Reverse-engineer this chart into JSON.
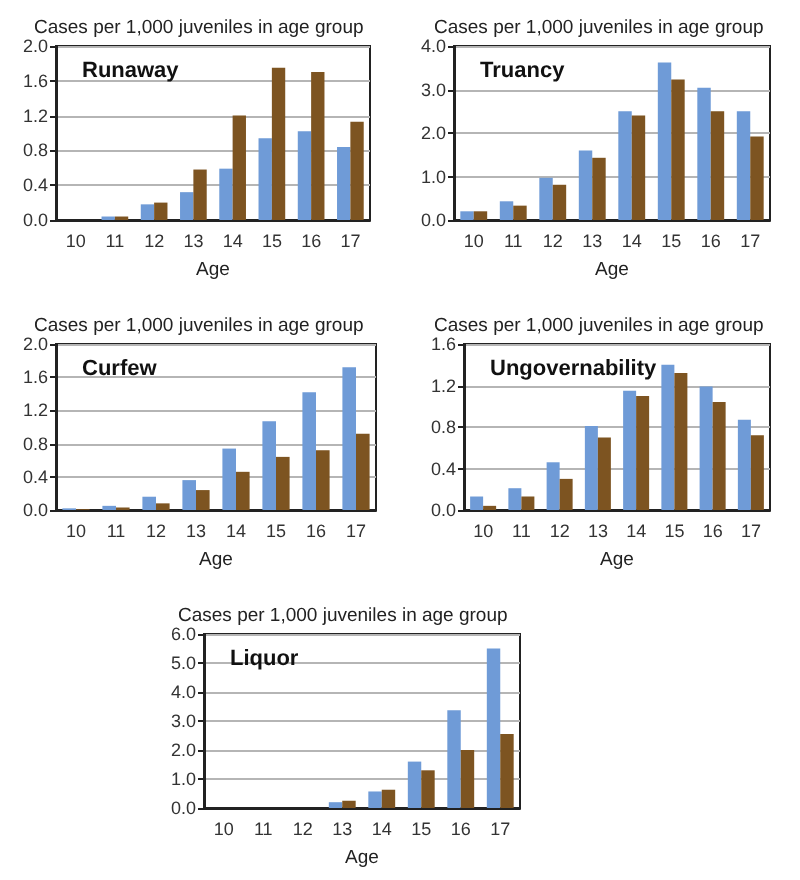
{
  "chart_data": [
    {
      "type": "bar",
      "title": "Runaway",
      "ylabel": "Cases per 1,000 juveniles in age group",
      "xlabel": "Age",
      "categories": [
        "10",
        "11",
        "12",
        "13",
        "14",
        "15",
        "16",
        "17"
      ],
      "series": [
        {
          "color": "#6f9bd7",
          "values": [
            0,
            0.04,
            0.18,
            0.32,
            0.59,
            0.94,
            1.02,
            0.84
          ]
        },
        {
          "color": "#7d5421",
          "values": [
            0,
            0.04,
            0.2,
            0.58,
            1.2,
            1.75,
            1.7,
            1.13
          ]
        }
      ],
      "ylim": [
        0,
        2
      ],
      "yticks": [
        {
          "value": 0,
          "label": "0.0"
        },
        0.4,
        0.8,
        1.2,
        1.6,
        {
          "value": 2,
          "label": "2.0"
        }
      ],
      "grid": "y"
    },
    {
      "type": "bar",
      "title": "Truancy",
      "ylabel": "Cases per 1,000 juveniles in age group",
      "xlabel": "Age",
      "categories": [
        "10",
        "11",
        "12",
        "13",
        "14",
        "15",
        "16",
        "17"
      ],
      "series": [
        {
          "color": "#6f9bd7",
          "values": [
            0.2,
            0.43,
            0.97,
            1.6,
            2.5,
            3.62,
            3.04,
            2.5
          ]
        },
        {
          "color": "#7d5421",
          "values": [
            0.2,
            0.33,
            0.81,
            1.43,
            2.4,
            3.23,
            2.5,
            1.92
          ]
        }
      ],
      "ylim": [
        0,
        4
      ],
      "yticks": [
        {
          "value": 0,
          "label": "0.0"
        },
        {
          "value": 1,
          "label": "1.0"
        },
        {
          "value": 2,
          "label": "2.0"
        },
        {
          "value": 3,
          "label": "3.0"
        },
        {
          "value": 4,
          "label": "4.0"
        }
      ],
      "grid": "y"
    },
    {
      "type": "bar",
      "title": "Curfew",
      "ylabel": "Cases per 1,000 juveniles in age group",
      "xlabel": "Age",
      "categories": [
        "10",
        "11",
        "12",
        "13",
        "14",
        "15",
        "16",
        "17"
      ],
      "series": [
        {
          "color": "#6f9bd7",
          "values": [
            0.02,
            0.05,
            0.16,
            0.36,
            0.74,
            1.07,
            1.42,
            1.72
          ]
        },
        {
          "color": "#7d5421",
          "values": [
            0.01,
            0.03,
            0.08,
            0.24,
            0.46,
            0.64,
            0.72,
            0.92
          ]
        }
      ],
      "ylim": [
        0,
        2
      ],
      "yticks": [
        {
          "value": 0,
          "label": "0.0"
        },
        0.4,
        0.8,
        1.2,
        1.6,
        {
          "value": 2,
          "label": "2.0"
        }
      ],
      "grid": "y"
    },
    {
      "type": "bar",
      "title": "Ungovernability",
      "ylabel": "Cases per 1,000 juveniles in age group",
      "xlabel": "Age",
      "categories": [
        "10",
        "11",
        "12",
        "13",
        "14",
        "15",
        "16",
        "17"
      ],
      "series": [
        {
          "color": "#6f9bd7",
          "values": [
            0.13,
            0.21,
            0.46,
            0.81,
            1.15,
            1.4,
            1.19,
            0.87
          ]
        },
        {
          "color": "#7d5421",
          "values": [
            0.04,
            0.13,
            0.3,
            0.7,
            1.1,
            1.32,
            1.04,
            0.72
          ]
        }
      ],
      "ylim": [
        0,
        1.6
      ],
      "yticks": [
        {
          "value": 0,
          "label": "0.0"
        },
        0.4,
        0.8,
        1.2,
        1.6
      ],
      "grid": "y"
    },
    {
      "type": "bar",
      "title": "Liquor",
      "ylabel": "Cases per 1,000 juveniles in age group",
      "xlabel": "Age",
      "categories": [
        "10",
        "11",
        "12",
        "13",
        "14",
        "15",
        "16",
        "17"
      ],
      "series": [
        {
          "color": "#6f9bd7",
          "values": [
            0,
            0,
            0,
            0.2,
            0.57,
            1.6,
            3.37,
            5.5
          ]
        },
        {
          "color": "#7d5421",
          "values": [
            0,
            0,
            0,
            0.25,
            0.63,
            1.3,
            2,
            2.55
          ]
        }
      ],
      "ylim": [
        0,
        6
      ],
      "yticks": [
        {
          "value": 0,
          "label": "0.0"
        },
        {
          "value": 1,
          "label": "1.0"
        },
        {
          "value": 2,
          "label": "2.0"
        },
        {
          "value": 3,
          "label": "3.0"
        },
        {
          "value": 4,
          "label": "4.0"
        },
        {
          "value": 5,
          "label": "5.0"
        },
        {
          "value": 6,
          "label": "6.0"
        }
      ],
      "grid": "y"
    }
  ]
}
